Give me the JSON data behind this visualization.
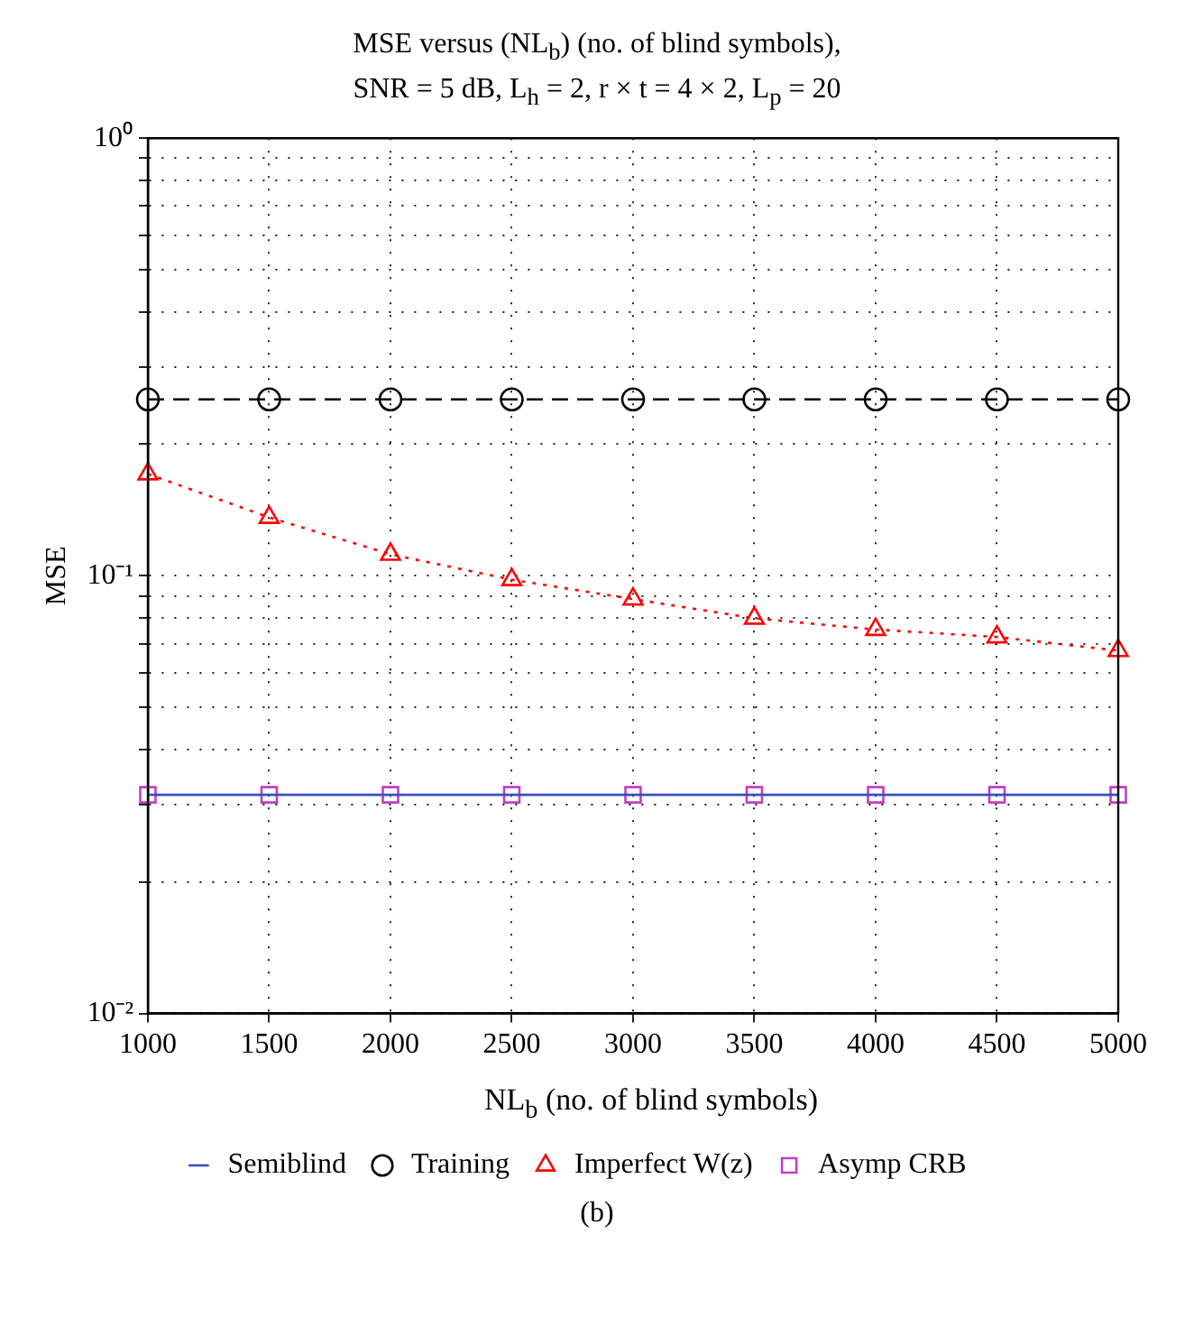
{
  "chart_data": {
    "type": "line",
    "title": "MSE versus (NL$_{b}$) (no. of blind symbols),",
    "subtitle": "SNR = 5 dB, L$_{h}$ = 2, r × t = 4 × 2, L$_{p}$ = 20",
    "xlabel": "NL$_{b}$ (no. of blind symbols)",
    "ylabel": "MSE",
    "x": [
      1000,
      1500,
      2000,
      2500,
      3000,
      3500,
      4000,
      4500,
      5000
    ],
    "xlim": [
      1000,
      5000
    ],
    "xticks": [
      1000,
      1500,
      2000,
      2500,
      3000,
      3500,
      4000,
      4500,
      5000
    ],
    "log": "y",
    "ylim": [
      0.01,
      1
    ],
    "yticks": [
      {
        "value": 0.01,
        "label": "10⁻²"
      },
      {
        "value": 0.02,
        "label": null
      },
      {
        "value": 0.03,
        "label": null
      },
      {
        "value": 0.04,
        "label": null
      },
      {
        "value": 0.05,
        "label": null
      },
      {
        "value": 0.06,
        "label": null
      },
      {
        "value": 0.07,
        "label": null
      },
      {
        "value": 0.08,
        "label": null
      },
      {
        "value": 0.09,
        "label": null
      },
      {
        "value": 0.1,
        "label": "10⁻¹"
      },
      {
        "value": 0.2,
        "label": null
      },
      {
        "value": 0.3,
        "label": null
      },
      {
        "value": 0.4,
        "label": null
      },
      {
        "value": 0.5,
        "label": null
      },
      {
        "value": 0.6,
        "label": null
      },
      {
        "value": 0.7,
        "label": null
      },
      {
        "value": 0.8,
        "label": null
      },
      {
        "value": 0.9,
        "label": null
      },
      {
        "value": 1,
        "label": "10⁰"
      }
    ],
    "grid": true,
    "legend": "bottom",
    "series": [
      {
        "name": "Semiblind",
        "type": "line",
        "color": "#3a4fc0",
        "marker": "none",
        "line_style": "solid",
        "values": [
          0.0316,
          0.0316,
          0.0316,
          0.0316,
          0.0316,
          0.0316,
          0.0316,
          0.0316,
          0.0316
        ]
      },
      {
        "name": "Training",
        "type": "line",
        "color": "#000000",
        "marker": "circle",
        "line_style": "dashed",
        "values": [
          0.253,
          0.253,
          0.253,
          0.253,
          0.253,
          0.253,
          0.253,
          0.253,
          0.253
        ]
      },
      {
        "name": "Imperfect W(z)",
        "type": "line",
        "color": "#ff0000",
        "marker": "triangle",
        "line_style": "dotted",
        "values": [
          0.171,
          0.136,
          0.112,
          0.098,
          0.0885,
          0.08,
          0.0754,
          0.0725,
          0.0675
        ]
      },
      {
        "name": "Asymp CRB",
        "type": "scatter",
        "color": "#c040c0",
        "marker": "square",
        "values": [
          0.0316,
          0.0316,
          0.0316,
          0.0316,
          0.0316,
          0.0316,
          0.0316,
          0.0316,
          0.0316
        ]
      }
    ],
    "annotations": [
      "(b)"
    ]
  }
}
